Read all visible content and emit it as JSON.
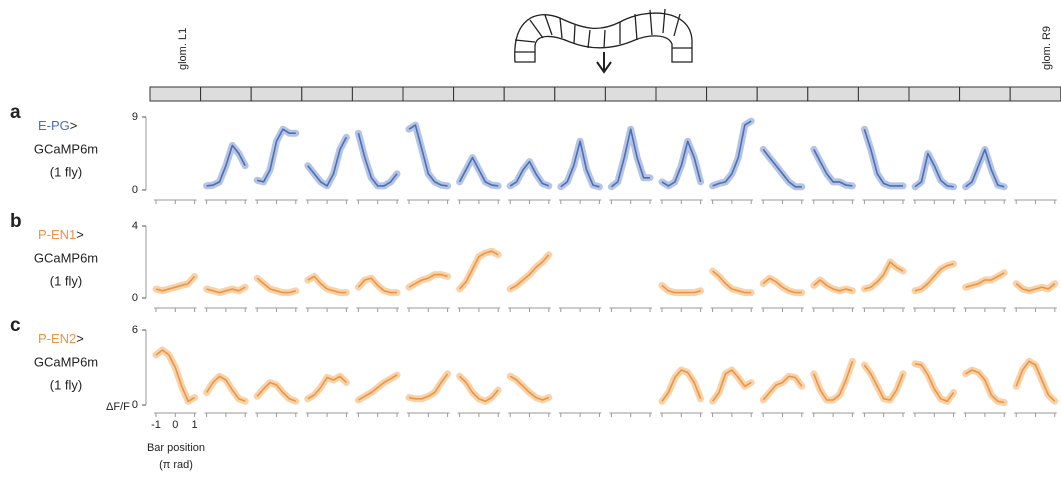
{
  "header": {
    "left_label": "glom. L1",
    "right_label": "glom. R9"
  },
  "chart_data": [
    {
      "type": "line",
      "panel": "a",
      "driver": "E-PG",
      "driver_suffix": ">",
      "indicator": "GCaMP6m",
      "n": "(1 fly)",
      "color": "#4a6fb5",
      "band_color": "#a8badf",
      "x": [
        -1,
        -0.67,
        -0.33,
        0,
        0.33,
        0.67,
        1
      ],
      "xlim": [
        -1,
        1
      ],
      "xticks": [
        -1,
        0,
        1
      ],
      "ylim": [
        0,
        9
      ],
      "yticks": [
        0,
        9
      ],
      "series": [
        {
          "values": [
            null,
            null,
            null,
            null,
            null,
            null,
            null
          ]
        },
        {
          "values": [
            0.5,
            0.6,
            1,
            3,
            5.5,
            4.5,
            3
          ]
        },
        {
          "values": [
            1.2,
            1,
            2.5,
            6,
            7.5,
            7,
            7
          ]
        },
        {
          "values": [
            3,
            2,
            1,
            0.5,
            2,
            5,
            6.5
          ]
        },
        {
          "values": [
            7,
            4,
            1.5,
            0.5,
            0.5,
            1,
            2
          ]
        },
        {
          "values": [
            7.5,
            8,
            5,
            2,
            1,
            0.6,
            0.5
          ]
        },
        {
          "values": [
            1,
            2.5,
            4,
            2.5,
            1,
            0.6,
            0.5
          ]
        },
        {
          "values": [
            0.5,
            1,
            2.5,
            3.5,
            2,
            0.8,
            0.5
          ]
        },
        {
          "values": [
            0.4,
            1,
            3,
            6,
            2.5,
            0.6,
            0.4
          ]
        },
        {
          "values": [
            0.4,
            1,
            4,
            7.5,
            4,
            1.5,
            1.5
          ]
        },
        {
          "values": [
            1,
            0.5,
            1,
            3,
            6,
            4,
            1
          ]
        },
        {
          "values": [
            0.5,
            0.8,
            1,
            2,
            4,
            8,
            8.5
          ]
        },
        {
          "values": [
            5,
            4,
            3,
            2,
            1,
            0.4,
            0.4
          ]
        },
        {
          "values": [
            5,
            3.5,
            2,
            1,
            1,
            0.6,
            0.5
          ]
        },
        {
          "values": [
            7.5,
            5,
            2,
            0.8,
            0.5,
            0.5,
            0.5
          ]
        },
        {
          "values": [
            0.4,
            1,
            4.5,
            3,
            1.2,
            0.5,
            0.4
          ]
        },
        {
          "values": [
            0.4,
            1,
            3,
            5,
            2.5,
            0.6,
            0.4
          ]
        },
        {
          "values": [
            null,
            null,
            null,
            null,
            null,
            null,
            null
          ]
        }
      ]
    },
    {
      "type": "line",
      "panel": "b",
      "driver": "P-EN1",
      "driver_suffix": ">",
      "indicator": "GCaMP6m",
      "n": "(1 fly)",
      "color": "#ec9442",
      "band_color": "#f7cb9b",
      "x": [
        -1,
        -0.67,
        -0.33,
        0,
        0.33,
        0.67,
        1
      ],
      "xlim": [
        -1,
        1
      ],
      "xticks": [
        -1,
        0,
        1
      ],
      "ylim": [
        0,
        4
      ],
      "yticks": [
        0,
        4
      ],
      "series": [
        {
          "values": [
            0.5,
            0.4,
            0.5,
            0.6,
            0.7,
            0.8,
            1.2
          ]
        },
        {
          "values": [
            0.5,
            0.4,
            0.3,
            0.4,
            0.5,
            0.4,
            0.6
          ]
        },
        {
          "values": [
            1.1,
            0.8,
            0.5,
            0.4,
            0.3,
            0.3,
            0.4
          ]
        },
        {
          "values": [
            1,
            1.2,
            0.8,
            0.5,
            0.4,
            0.3,
            0.3
          ]
        },
        {
          "values": [
            0.6,
            1,
            1.1,
            0.7,
            0.4,
            0.3,
            0.3
          ]
        },
        {
          "values": [
            0.6,
            0.8,
            1,
            1.1,
            1.3,
            1.3,
            1.2
          ]
        },
        {
          "values": [
            0.5,
            0.9,
            1.6,
            2.3,
            2.5,
            2.6,
            2.4
          ]
        },
        {
          "values": [
            0.5,
            0.7,
            1,
            1.3,
            1.7,
            2,
            2.4
          ]
        },
        {
          "values": [
            null,
            null,
            null,
            null,
            null,
            null,
            null
          ]
        },
        {
          "values": [
            null,
            null,
            null,
            null,
            null,
            null,
            null
          ]
        },
        {
          "values": [
            0.7,
            0.4,
            0.3,
            0.3,
            0.3,
            0.3,
            0.4
          ]
        },
        {
          "values": [
            1.5,
            1.2,
            0.8,
            0.5,
            0.4,
            0.3,
            0.3
          ]
        },
        {
          "values": [
            0.8,
            1.1,
            0.9,
            0.6,
            0.4,
            0.3,
            0.3
          ]
        },
        {
          "values": [
            0.7,
            1,
            0.7,
            0.5,
            0.4,
            0.5,
            0.4
          ]
        },
        {
          "values": [
            0.5,
            0.6,
            0.9,
            1.3,
            2,
            1.7,
            1.5
          ]
        },
        {
          "values": [
            0.4,
            0.5,
            0.8,
            1.2,
            1.6,
            1.8,
            1.9
          ]
        },
        {
          "values": [
            0.6,
            0.7,
            0.8,
            1,
            1,
            1.2,
            1.4
          ]
        },
        {
          "values": [
            0.8,
            0.5,
            0.4,
            0.5,
            0.6,
            0.5,
            0.8
          ]
        }
      ]
    },
    {
      "type": "line",
      "panel": "c",
      "driver": "P-EN2",
      "driver_suffix": ">",
      "indicator": "GCaMP6m",
      "n": "(1 fly)",
      "color": "#ec9442",
      "band_color": "#f7cb9b",
      "x": [
        -1,
        -0.67,
        -0.33,
        0,
        0.33,
        0.67,
        1
      ],
      "xlim": [
        -1,
        1
      ],
      "xticks": [
        -1,
        0,
        1
      ],
      "ylim": [
        0,
        6
      ],
      "yticks": [
        0,
        6
      ],
      "ylabel": "ΔF/F",
      "xlabel": "Bar position",
      "xlabel_unit": "(π rad)",
      "series": [
        {
          "values": [
            4,
            4.4,
            4,
            3,
            1.5,
            0.3,
            0.6
          ]
        },
        {
          "values": [
            1,
            1.8,
            2.3,
            2,
            1.2,
            0.5,
            0.3
          ]
        },
        {
          "values": [
            0.7,
            1.3,
            1.8,
            1.6,
            1,
            0.5,
            0.3
          ]
        },
        {
          "values": [
            0.5,
            0.8,
            1.4,
            2.2,
            2,
            2.3,
            1.8
          ]
        },
        {
          "values": [
            0.4,
            0.7,
            1,
            1.4,
            1.8,
            2.1,
            2.4
          ]
        },
        {
          "values": [
            0.6,
            0.5,
            0.5,
            0.7,
            1,
            1.8,
            2.5
          ]
        },
        {
          "values": [
            2.3,
            1.8,
            1,
            0.5,
            0.3,
            0.6,
            1.2
          ]
        },
        {
          "values": [
            2.3,
            2,
            1.5,
            1,
            0.6,
            0.4,
            0.6
          ]
        },
        {
          "values": [
            null,
            null,
            null,
            null,
            null,
            null,
            null
          ]
        },
        {
          "values": [
            null,
            null,
            null,
            null,
            null,
            null,
            null
          ]
        },
        {
          "values": [
            0.3,
            1,
            2.2,
            2.8,
            2.6,
            1.8,
            0.5
          ]
        },
        {
          "values": [
            0.3,
            1,
            2.5,
            2.8,
            2.2,
            1.5,
            1.8
          ]
        },
        {
          "values": [
            0.4,
            1,
            1.6,
            1.8,
            2.3,
            2.2,
            1.5
          ]
        },
        {
          "values": [
            2.5,
            1.2,
            0.4,
            0.4,
            0.8,
            2,
            3.5
          ]
        },
        {
          "values": [
            3.2,
            2.5,
            1.5,
            0.5,
            0.4,
            1.2,
            2.5
          ]
        },
        {
          "values": [
            3.3,
            3.2,
            2.4,
            1.3,
            0.5,
            0.3,
            1
          ]
        },
        {
          "values": [
            2.5,
            2.8,
            2.6,
            2,
            0.8,
            0.3,
            0.2
          ]
        },
        {
          "values": [
            1.5,
            2.8,
            3.5,
            3.2,
            2,
            0.8,
            0.3
          ]
        }
      ]
    }
  ]
}
